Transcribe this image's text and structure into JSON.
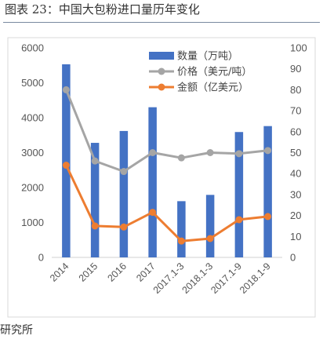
{
  "figure": {
    "title": "图表 23：中国大包粉进口量历年变化",
    "source": "研究所"
  },
  "chart_data": {
    "type": "bar",
    "categories": [
      "2014",
      "2015",
      "2016",
      "2017",
      "2017.1-3",
      "2018.1-3",
      "2017.1-9",
      "2018.1-9"
    ],
    "series": [
      {
        "name": "数量（万吨）",
        "type": "bar",
        "axis": "left",
        "color": "#4472c4",
        "values": [
          5530,
          3280,
          3620,
          4300,
          1610,
          1790,
          3590,
          3760
        ]
      },
      {
        "name": "价格（美元/吨）",
        "type": "line",
        "axis": "right",
        "color": "#a5a5a5",
        "values": [
          80,
          46,
          41,
          50,
          47.5,
          50,
          49.5,
          51
        ]
      },
      {
        "name": "金额（亿美元）",
        "type": "line",
        "axis": "right",
        "color": "#ed7d31",
        "values": [
          44,
          15,
          14.5,
          21.5,
          7.8,
          9,
          18,
          19.5
        ]
      }
    ],
    "ylim_left": [
      0,
      6000
    ],
    "yticks_left": [
      "0",
      "1000",
      "2000",
      "3000",
      "4000",
      "5000",
      "6000"
    ],
    "ylim_right": [
      0,
      100
    ],
    "yticks_right": [
      "0",
      "10",
      "20",
      "30",
      "40",
      "50",
      "60",
      "70",
      "80",
      "90",
      "100"
    ],
    "grid": false,
    "legend_position": "top-right"
  }
}
